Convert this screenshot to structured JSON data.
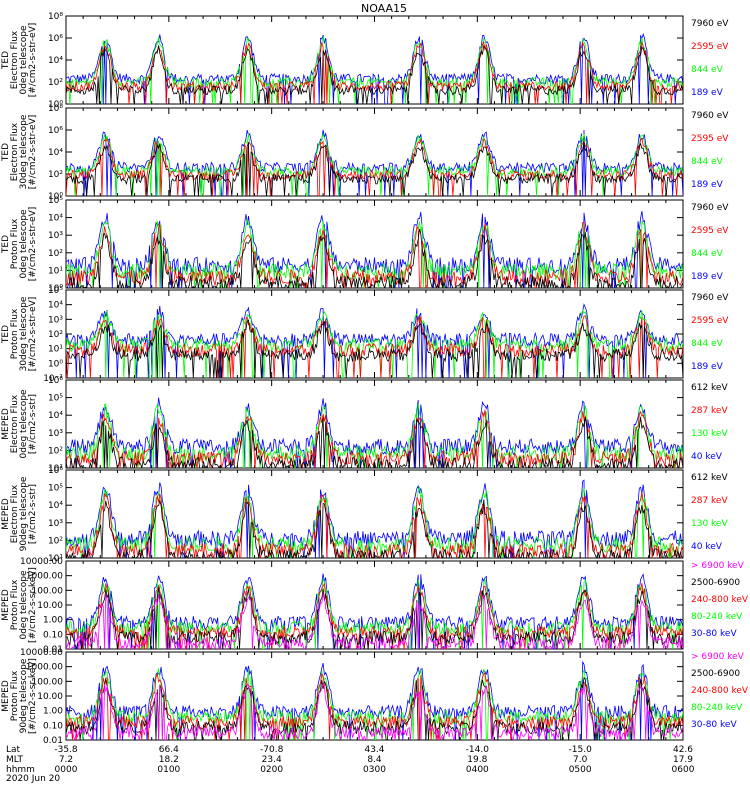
{
  "colors": {
    "blue": "#0000ff",
    "red": "#ff0000",
    "green": "#00ff00",
    "black": "#000000",
    "magenta": "#ff00ff"
  },
  "chart_data": {
    "type": "line",
    "title": "NOAA15",
    "x_axis": {
      "row_labels": [
        "Lat",
        "MLT",
        "hhmm",
        "2020 Jun 20"
      ],
      "ticks": [
        {
          "lat": "-35.8",
          "mlt": "7.2",
          "hhmm": "0000"
        },
        {
          "lat": "66.4",
          "mlt": "18.2",
          "hhmm": "0100"
        },
        {
          "lat": "-70.8",
          "mlt": "23.4",
          "hhmm": "0200"
        },
        {
          "lat": "43.4",
          "mlt": "8.4",
          "hhmm": "0300"
        },
        {
          "lat": "-14.0",
          "mlt": "19.8",
          "hhmm": "0400"
        },
        {
          "lat": "-15.0",
          "mlt": "7.0",
          "hhmm": "0500"
        },
        {
          "lat": "42.6",
          "mlt": "17.9",
          "hhmm": "0600"
        }
      ]
    },
    "panels": [
      {
        "ylabel": [
          "TED",
          "Electron Flux",
          "0deg telescope",
          "[#/cm2-s-str-eV]"
        ],
        "yticks": [
          "10⁰",
          "10²",
          "10⁴",
          "10⁶",
          "10⁸"
        ],
        "ymin_exp": 0,
        "ymax_exp": 8,
        "base": 2.3,
        "peak": 6.0,
        "legend": [
          {
            "label": "7960 eV",
            "color": "#000000"
          },
          {
            "label": "2595 eV",
            "color": "#ff0000"
          },
          {
            "label": "844 eV",
            "color": "#00ff00"
          },
          {
            "label": "189 eV",
            "color": "#0000ff"
          }
        ]
      },
      {
        "ylabel": [
          "TED",
          "Electron Flux",
          "30deg telescope",
          "[#/cm2-s-str-eV]"
        ],
        "yticks": [
          "10⁰",
          "10²",
          "10⁴",
          "10⁶",
          "10⁸"
        ],
        "ymin_exp": 0,
        "ymax_exp": 8,
        "base": 2.6,
        "peak": 5.6,
        "legend": [
          {
            "label": "7960 eV",
            "color": "#000000"
          },
          {
            "label": "2595 eV",
            "color": "#ff0000"
          },
          {
            "label": "844 eV",
            "color": "#00ff00"
          },
          {
            "label": "189 eV",
            "color": "#0000ff"
          }
        ]
      },
      {
        "ylabel": [
          "TED",
          "Proton Flux",
          "0deg telescope",
          "[#/cm2-s-str-eV]"
        ],
        "yticks": [
          "10⁰",
          "10¹",
          "10²",
          "10³",
          "10⁴",
          "10⁵"
        ],
        "ymin_exp": 0,
        "ymax_exp": 5,
        "base": 1.3,
        "peak": 4.0,
        "legend": [
          {
            "label": "7960 eV",
            "color": "#000000"
          },
          {
            "label": "2595 eV",
            "color": "#ff0000"
          },
          {
            "label": "844 eV",
            "color": "#00ff00"
          },
          {
            "label": "189 eV",
            "color": "#0000ff"
          }
        ]
      },
      {
        "ylabel": [
          "TED",
          "Proton Flux",
          "30deg telescope",
          "[#/cm2-s-str-eV]"
        ],
        "yticks": [
          "10⁻¹",
          "10⁰",
          "10¹",
          "10²",
          "10³",
          "10⁴",
          "10⁵"
        ],
        "ymin_exp": -1,
        "ymax_exp": 5,
        "base": 1.6,
        "peak": 3.6,
        "legend": [
          {
            "label": "7960 eV",
            "color": "#000000"
          },
          {
            "label": "2595 eV",
            "color": "#ff0000"
          },
          {
            "label": "844 eV",
            "color": "#00ff00"
          },
          {
            "label": "189 eV",
            "color": "#0000ff"
          }
        ]
      },
      {
        "ylabel": [
          "MEPED",
          "Electron Flux",
          "0deg telescope",
          "[#/cm2-s-str]"
        ],
        "yticks": [
          "10¹",
          "10²",
          "10³",
          "10⁴",
          "10⁵",
          "10⁶"
        ],
        "ymin_exp": 1,
        "ymax_exp": 6,
        "base": 2.2,
        "peak": 4.6,
        "legend": [
          {
            "label": "612 keV",
            "color": "#000000"
          },
          {
            "label": "287 keV",
            "color": "#ff0000"
          },
          {
            "label": "130 keV",
            "color": "#00ff00"
          },
          {
            "label": "40 keV",
            "color": "#0000ff"
          }
        ]
      },
      {
        "ylabel": [
          "MEPED",
          "Electron Flux",
          "90deg telescope",
          "[#/cm2-s-str]"
        ],
        "yticks": [
          "10¹",
          "10²",
          "10³",
          "10⁴",
          "10⁵",
          "10⁶"
        ],
        "ymin_exp": 1,
        "ymax_exp": 6,
        "base": 2.1,
        "peak": 5.0,
        "legend": [
          {
            "label": "612 keV",
            "color": "#000000"
          },
          {
            "label": "287 keV",
            "color": "#ff0000"
          },
          {
            "label": "130 keV",
            "color": "#00ff00"
          },
          {
            "label": "40 keV",
            "color": "#0000ff"
          }
        ]
      },
      {
        "ylabel": [
          "MEPED",
          "Proton Flux",
          "0deg telescope",
          "[#/cm2-s-sr-keV]"
        ],
        "yticks": [
          "0.01",
          "0.10",
          "1.00",
          "10.00",
          "100.00",
          "1000.00",
          "10000.00"
        ],
        "ymin_exp": -2,
        "ymax_exp": 4,
        "base": -0.2,
        "peak": 2.8,
        "legend": [
          {
            "label": "> 6900 keV",
            "color": "#ff00ff"
          },
          {
            "label": "2500-6900",
            "color": "#000000"
          },
          {
            "label": "240-800 keV",
            "color": "#ff0000"
          },
          {
            "label": "80-240 keV",
            "color": "#00ff00"
          },
          {
            "label": "30-80 keV",
            "color": "#0000ff"
          }
        ]
      },
      {
        "ylabel": [
          "MEPED",
          "Proton Flux",
          "90deg telescope",
          "[#/cm2-s-sr-keV]"
        ],
        "yticks": [
          "0.01",
          "0.10",
          "1.00",
          "10.00",
          "100.00",
          "1000.00",
          "10000.00"
        ],
        "ymin_exp": -2,
        "ymax_exp": 4,
        "base": -0.1,
        "peak": 2.9,
        "legend": [
          {
            "label": "> 6900 keV",
            "color": "#ff00ff"
          },
          {
            "label": "2500-6900",
            "color": "#000000"
          },
          {
            "label": "240-800 keV",
            "color": "#ff0000"
          },
          {
            "label": "80-240 keV",
            "color": "#00ff00"
          },
          {
            "label": "30-80 keV",
            "color": "#0000ff"
          }
        ]
      }
    ],
    "events_hhmm": [
      "0023",
      "0054",
      "0146",
      "0230",
      "0326",
      "0404",
      "0502",
      "0536"
    ],
    "grid": false,
    "legend_placement": "right"
  }
}
